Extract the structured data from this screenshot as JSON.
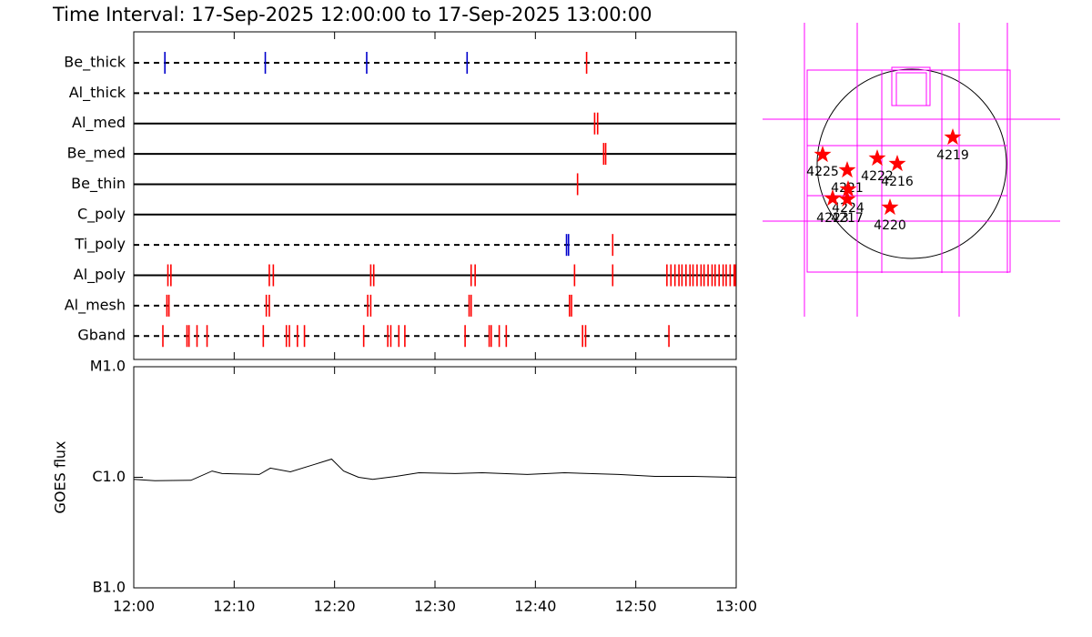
{
  "chart_data": [
    {
      "type": "timeline",
      "title": "Time Interval: 17-Sep-2025 12:00:00 to 17-Sep-2025 13:00:00",
      "xlim": [
        0,
        60
      ],
      "series": [
        {
          "name": "Be_thick",
          "line": "dashed",
          "marks": [
            {
              "color": "#0000cc",
              "x": [
                3.1,
                13.1,
                23.2,
                33.2
              ]
            },
            {
              "color": "#ff0000",
              "x": [
                45.1
              ]
            }
          ]
        },
        {
          "name": "Al_thick",
          "line": "dashed",
          "marks": []
        },
        {
          "name": "Al_med",
          "line": "solid",
          "marks": [
            {
              "color": "#ff0000",
              "x": [
                45.9,
                46.2
              ]
            }
          ]
        },
        {
          "name": "Be_med",
          "line": "solid",
          "marks": [
            {
              "color": "#ff0000",
              "x": [
                46.8,
                47.0
              ]
            }
          ]
        },
        {
          "name": "Be_thin",
          "line": "solid",
          "marks": [
            {
              "color": "#ff0000",
              "x": [
                44.2
              ]
            }
          ]
        },
        {
          "name": "C_poly",
          "line": "solid",
          "marks": []
        },
        {
          "name": "Ti_poly",
          "line": "dashed",
          "marks": [
            {
              "color": "#0000cc",
              "x": [
                43.1,
                43.3
              ]
            },
            {
              "color": "#ff0000",
              "x": [
                47.7
              ]
            }
          ]
        },
        {
          "name": "Al_poly",
          "line": "solid",
          "marks": [
            {
              "color": "#ff0000",
              "x": [
                3.4,
                3.7,
                13.5,
                13.9,
                23.6,
                23.9,
                33.6,
                34.0,
                43.9,
                47.7,
                53.1,
                53.5,
                53.9,
                54.3,
                54.6,
                55.0,
                55.4,
                55.7,
                56.1,
                56.5,
                56.8,
                57.2,
                57.6,
                57.9,
                58.3,
                58.7,
                59.0,
                59.4,
                59.8,
                59.9
              ]
            }
          ]
        },
        {
          "name": "Al_mesh",
          "line": "dashed",
          "marks": [
            {
              "color": "#ff0000",
              "x": [
                3.3,
                3.5,
                13.2,
                13.5,
                23.3,
                23.6,
                33.4,
                33.6,
                43.4,
                43.6
              ]
            }
          ]
        },
        {
          "name": "Gband",
          "line": "dashed",
          "marks": [
            {
              "color": "#ff0000",
              "x": [
                2.9,
                5.3,
                5.5,
                6.3,
                7.3,
                12.9,
                15.2,
                15.5,
                16.3,
                17.0,
                22.9,
                25.3,
                25.6,
                26.4,
                27.0,
                33.0,
                35.4,
                35.6,
                36.4,
                37.1,
                44.7,
                45.0,
                53.3
              ]
            }
          ]
        }
      ]
    },
    {
      "type": "line",
      "ylabel": "GOES flux",
      "log_scale": true,
      "color": "#000000",
      "x": [
        0,
        2.1,
        5.7,
        7.8,
        8.8,
        12.5,
        13.6,
        15.6,
        17.9,
        19.7,
        20.9,
        22.4,
        23.8,
        26.1,
        28.4,
        32.0,
        34.7,
        39.2,
        42.9,
        48.3,
        51.9,
        55.6,
        59.7
      ],
      "values": [
        9.6e-07,
        9.3e-07,
        9.4e-07,
        1.14e-06,
        1.08e-06,
        1.06e-06,
        1.21e-06,
        1.12e-06,
        1.3e-06,
        1.46e-06,
        1.14e-06,
        1e-06,
        9.6e-07,
        1.02e-06,
        1.1e-06,
        1.08e-06,
        1.1e-06,
        1.06e-06,
        1.1e-06,
        1.06e-06,
        1.02e-06,
        1.02e-06,
        1e-06
      ],
      "xlim": [
        0,
        60
      ],
      "xticks": [
        {
          "value": 0,
          "label": "12:00"
        },
        {
          "value": 10,
          "label": "12:10"
        },
        {
          "value": 20,
          "label": "12:20"
        },
        {
          "value": 30,
          "label": "12:30"
        },
        {
          "value": 40,
          "label": "12:40"
        },
        {
          "value": 50,
          "label": "12:50"
        },
        {
          "value": 60,
          "label": "13:00"
        }
      ],
      "ylim": [
        1e-07,
        1e-05
      ],
      "yticks": [
        {
          "value": 1e-07,
          "label": "B1.0"
        },
        {
          "value": 1e-06,
          "label": "C1.0"
        },
        {
          "value": 1e-05,
          "label": "M1.0"
        }
      ]
    }
  ],
  "sun_map": {
    "regions": [
      "4219",
      "4225",
      "4222",
      "4216",
      "4221",
      "4224",
      "4223",
      "4217",
      "4220"
    ]
  }
}
